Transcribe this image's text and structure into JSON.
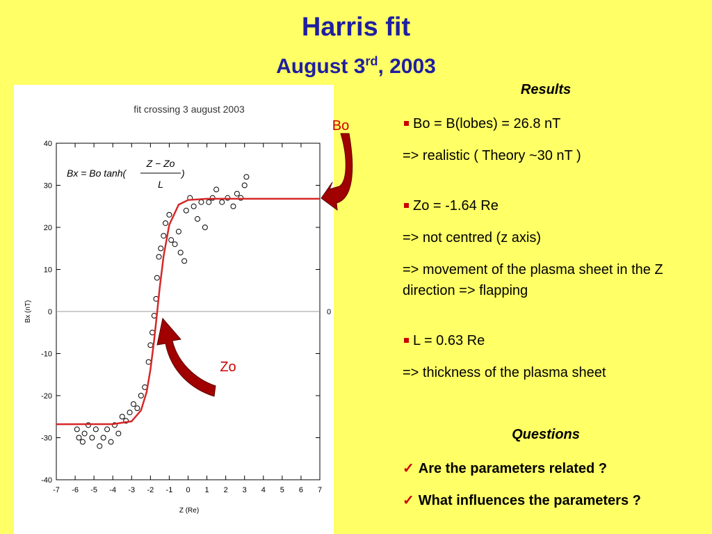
{
  "header": {
    "title": "Harris fit",
    "subtitle": [
      "August 3",
      "rd",
      ", 2003"
    ]
  },
  "results": {
    "heading": "Results",
    "items": [
      "Bo = B(lobes) = 26.8 nT",
      "=> realistic ( Theory ~30 nT )",
      "Zo = -1.64 Re",
      "=> not centred (z axis)",
      "=> movement of the plasma sheet in the Z direction => flapping",
      "L = 0.63 Re",
      "=> thickness  of the plasma sheet"
    ]
  },
  "questions": {
    "heading": "Questions",
    "items": [
      "Are the parameters related ?",
      "What influences the parameters ?"
    ]
  },
  "arrow_labels": [
    "Bo",
    "Zo"
  ],
  "chart_data": {
    "type": "scatter",
    "title": "fit crossing 3 august 2003",
    "xlabel": "Z (Re)",
    "ylabel": "Bx (nT)",
    "formula": {
      "lhs": "Bx = Bo tanh(",
      "numerator": "Z − Zo",
      "denominator": "L",
      "close": ")"
    },
    "xlim": [
      -7,
      7
    ],
    "xticks": [
      -7,
      -6,
      -5,
      -4,
      -3,
      -2,
      -1,
      0,
      1,
      2,
      3,
      4,
      5,
      6,
      7
    ],
    "ylim": [
      -40,
      40
    ],
    "yticks": [
      -40,
      -30,
      -20,
      -10,
      0,
      10,
      20,
      30,
      40
    ],
    "y2lim": [
      -40,
      40
    ],
    "y2ticks": [
      0
    ],
    "series": [
      {
        "type": "scatter",
        "color": "#000000",
        "x": [
          -5.9,
          -5.8,
          -5.6,
          -5.5,
          -5.3,
          -5.1,
          -4.9,
          -4.7,
          -4.5,
          -4.3,
          -4.1,
          -3.9,
          -3.7,
          -3.5,
          -3.3,
          -3.1,
          -2.9,
          -2.7,
          -2.5,
          -2.3,
          -2.1,
          -2.0,
          -1.9,
          -1.8,
          -1.7,
          -1.65,
          -1.55,
          -1.45,
          -1.3,
          -1.2,
          -1.0,
          -0.9,
          -0.7,
          -0.5,
          -0.4,
          -0.2,
          -0.1,
          0.1,
          0.3,
          0.5,
          0.7,
          0.9,
          1.1,
          1.3,
          1.5,
          1.8,
          2.1,
          2.4,
          2.6,
          2.8,
          3.0,
          3.1
        ],
        "values": [
          -28,
          -30,
          -31,
          -29,
          -27,
          -30,
          -28,
          -32,
          -30,
          -28,
          -31,
          -27,
          -29,
          -25,
          -26,
          -24,
          -22,
          -23,
          -20,
          -18,
          -12,
          -8,
          -5,
          -1,
          3,
          8,
          13,
          15,
          18,
          21,
          23,
          17,
          16,
          19,
          14,
          12,
          24,
          27,
          25,
          22,
          26,
          20,
          26,
          27,
          29,
          26,
          27,
          25,
          28,
          27,
          30,
          32
        ]
      },
      {
        "type": "line",
        "color": "#d62728",
        "x": [
          -7,
          -4,
          -3,
          -2.5,
          -2.2,
          -2,
          -1.8,
          -1.64,
          -1.5,
          -1.3,
          -1,
          -0.5,
          0,
          1,
          7
        ],
        "values": [
          -26.8,
          -26.77,
          -26.1,
          -23.5,
          -19.1,
          -13.8,
          -6.7,
          0,
          5.9,
          13.2,
          20.6,
          25.4,
          26.5,
          26.8,
          26.8
        ]
      }
    ]
  }
}
